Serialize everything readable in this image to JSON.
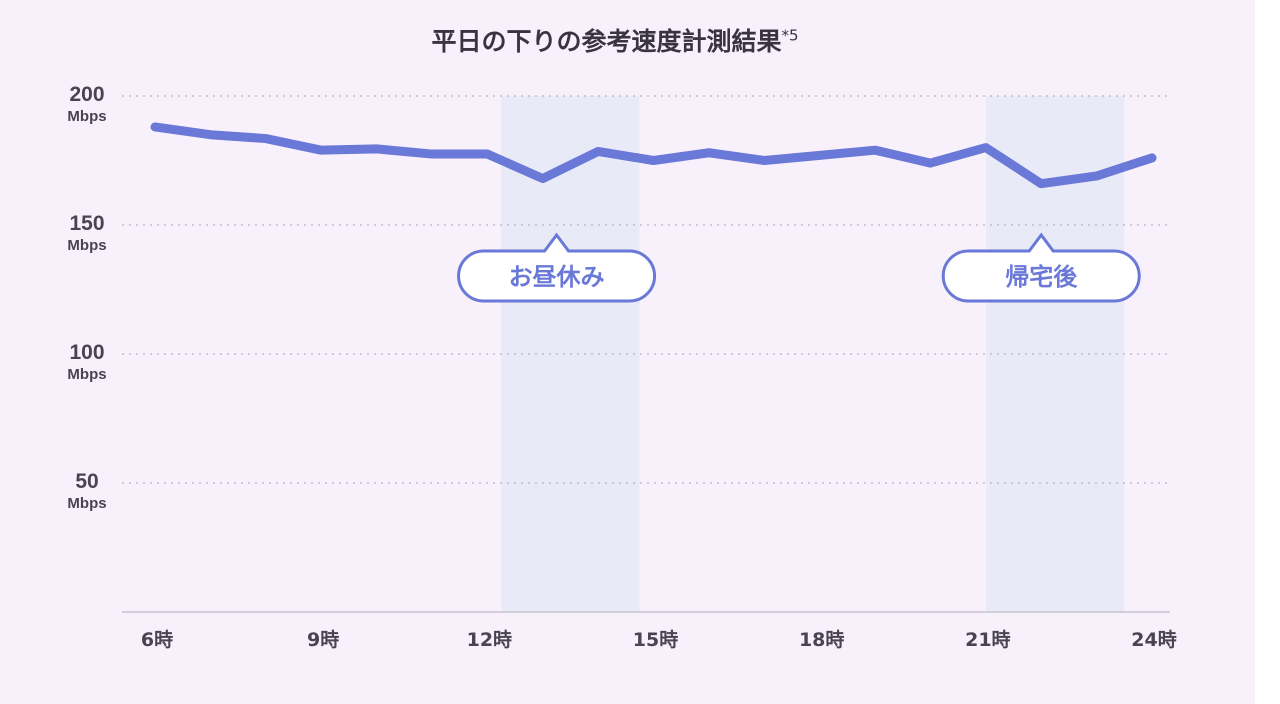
{
  "chart_data": {
    "type": "line",
    "title": "平日の下りの参考速度計測結果",
    "title_note": "*5",
    "y_unit": "Mbps",
    "ylim": [
      0,
      200
    ],
    "yticks": [
      200,
      150,
      100,
      50
    ],
    "xlim": [
      6,
      24
    ],
    "xticks": [
      {
        "value": 6,
        "label": "6時"
      },
      {
        "value": 9,
        "label": "9時"
      },
      {
        "value": 12,
        "label": "12時"
      },
      {
        "value": 15,
        "label": "15時"
      },
      {
        "value": 18,
        "label": "18時"
      },
      {
        "value": 21,
        "label": "21時"
      },
      {
        "value": 24,
        "label": "24時"
      }
    ],
    "grid": true,
    "series": [
      {
        "color": "#6a78d8",
        "x": [
          6,
          7,
          8,
          9,
          10,
          11,
          12,
          13,
          14,
          15,
          16,
          17,
          18,
          19,
          20,
          21,
          22,
          23,
          24
        ],
        "values": [
          188,
          185,
          183.5,
          179,
          179.5,
          177.5,
          177.5,
          168,
          178.5,
          175,
          178,
          175,
          177,
          179,
          174,
          180,
          166,
          169,
          176
        ]
      }
    ],
    "highlights": [
      {
        "label": "お昼休み",
        "x_start": 12.25,
        "x_end": 14.75,
        "pointer_x": 13.25
      },
      {
        "label": "帰宅後",
        "x_start": 21.0,
        "x_end": 23.5,
        "pointer_x": 22.0
      }
    ],
    "colors": {
      "background": "#f8f1fc",
      "highlight_band": "#e8eaf8",
      "line": "#6a78d8",
      "grid": "#b9b3c0",
      "axis": "#c8c2ce",
      "text": "#4a4450"
    }
  }
}
